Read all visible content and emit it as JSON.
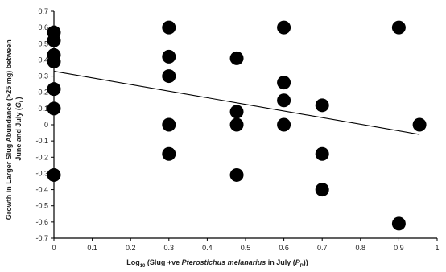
{
  "chart_data": {
    "type": "scatter",
    "title": "",
    "ylabel_line1": "Growth in Larger Slug Abundance (>25 mg) between",
    "ylabel_line2_prefix": "June and July (",
    "ylabel_line2_var": "G",
    "ylabel_line2_sub": "L",
    "ylabel_line2_suffix": ")",
    "xlabel_prefix": "Log",
    "xlabel_sub": "10",
    "xlabel_mid": " (Slug +ve ",
    "xlabel_species": "Pterostichus melanarius",
    "xlabel_after": " in July (",
    "xlabel_var": "P",
    "xlabel_var_sub": "P",
    "xlabel_end": "))",
    "xlim": [
      0,
      1
    ],
    "ylim": [
      -0.7,
      0.7
    ],
    "x_ticks": [
      0,
      0.1,
      0.2,
      0.3,
      0.4,
      0.5,
      0.6,
      0.7,
      0.8,
      0.9,
      1
    ],
    "x_tick_labels": [
      "0",
      "0.1",
      "0.2",
      "0.3",
      "0.4",
      "0.5",
      "0.6",
      "0.7",
      "0.8",
      "0.9",
      "1"
    ],
    "y_ticks": [
      0.7,
      0.6,
      0.5,
      0.4,
      0.3,
      0.2,
      0.1,
      0,
      -0.1,
      -0.2,
      -0.3,
      -0.4,
      -0.5,
      -0.6,
      -0.7
    ],
    "y_tick_labels": [
      "0.7",
      "0.6",
      "0.5",
      "0.4",
      "0.3",
      "0.2",
      "0.1",
      "0",
      "-0.1",
      "-0.2",
      "-0.3",
      "-0.4",
      "-0.5",
      "-0.6",
      "-0.7"
    ],
    "grid": false,
    "points": [
      {
        "x": 0.0,
        "y": 0.57
      },
      {
        "x": 0.0,
        "y": 0.52
      },
      {
        "x": 0.0,
        "y": 0.43
      },
      {
        "x": 0.0,
        "y": 0.39
      },
      {
        "x": 0.0,
        "y": 0.22
      },
      {
        "x": 0.0,
        "y": 0.1
      },
      {
        "x": 0.0,
        "y": -0.31
      },
      {
        "x": 0.3,
        "y": 0.6
      },
      {
        "x": 0.3,
        "y": 0.42
      },
      {
        "x": 0.3,
        "y": 0.3
      },
      {
        "x": 0.3,
        "y": 0.0
      },
      {
        "x": 0.3,
        "y": -0.18
      },
      {
        "x": 0.477,
        "y": 0.41
      },
      {
        "x": 0.477,
        "y": 0.08
      },
      {
        "x": 0.477,
        "y": 0.0
      },
      {
        "x": 0.477,
        "y": -0.31
      },
      {
        "x": 0.6,
        "y": 0.6
      },
      {
        "x": 0.6,
        "y": 0.26
      },
      {
        "x": 0.6,
        "y": 0.15
      },
      {
        "x": 0.6,
        "y": 0.0
      },
      {
        "x": 0.7,
        "y": 0.12
      },
      {
        "x": 0.7,
        "y": -0.18
      },
      {
        "x": 0.7,
        "y": -0.4
      },
      {
        "x": 0.9,
        "y": 0.6
      },
      {
        "x": 0.9,
        "y": -0.61
      },
      {
        "x": 0.954,
        "y": 0.0
      }
    ],
    "trendline": {
      "x": [
        0,
        0.954
      ],
      "y": [
        0.33,
        -0.06
      ]
    }
  }
}
